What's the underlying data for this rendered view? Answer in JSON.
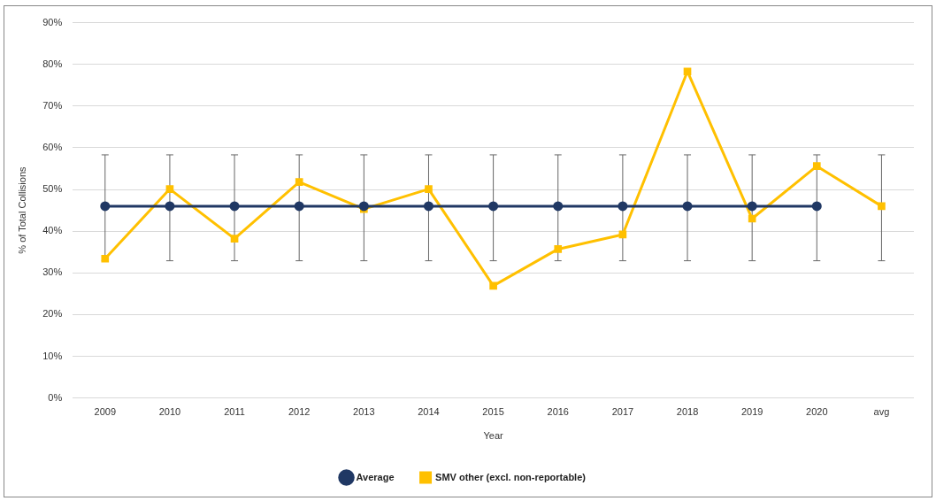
{
  "chart_data": {
    "type": "line",
    "xlabel": "Year",
    "ylabel": "% of Total Collisions",
    "categories": [
      "2009",
      "2010",
      "2011",
      "2012",
      "2013",
      "2014",
      "2015",
      "2016",
      "2017",
      "2018",
      "2019",
      "2020",
      "avg"
    ],
    "series": [
      {
        "name": "SMV other (excl. non-reportable)",
        "color": "#ffc000",
        "marker": "square",
        "values": [
          33.4,
          50.1,
          38.2,
          51.8,
          45.3,
          50.1,
          26.9,
          35.7,
          39.2,
          78.3,
          43.0,
          55.6,
          46.0
        ],
        "errors": [
          [
            32.9,
            58.3
          ],
          [
            32.9,
            58.3
          ],
          [
            32.9,
            58.3
          ],
          [
            32.9,
            58.3
          ],
          [
            32.9,
            58.3
          ],
          [
            32.9,
            58.3
          ],
          [
            32.9,
            58.3
          ],
          [
            32.9,
            58.3
          ],
          [
            32.9,
            58.3
          ],
          [
            32.9,
            58.3
          ],
          [
            32.9,
            58.3
          ],
          [
            32.9,
            58.3
          ],
          [
            32.9,
            58.3
          ]
        ]
      },
      {
        "name": "Average",
        "color": "#203864",
        "marker": "circle",
        "values": [
          46,
          46,
          46,
          46,
          46,
          46,
          46,
          46,
          46,
          46,
          46,
          46,
          null
        ]
      }
    ],
    "ylim": [
      0,
      90
    ],
    "yticks": [
      {
        "value": 0,
        "label": "0%"
      },
      {
        "value": 10,
        "label": "10%"
      },
      {
        "value": 20,
        "label": "20%"
      },
      {
        "value": 30,
        "label": "30%"
      },
      {
        "value": 40,
        "label": "40%"
      },
      {
        "value": 50,
        "label": "50%"
      },
      {
        "value": 60,
        "label": "60%"
      },
      {
        "value": 70,
        "label": "70%"
      },
      {
        "value": 80,
        "label": "80%"
      },
      {
        "value": 90,
        "label": "90%"
      }
    ],
    "grid": "y",
    "legend": "bottom"
  }
}
